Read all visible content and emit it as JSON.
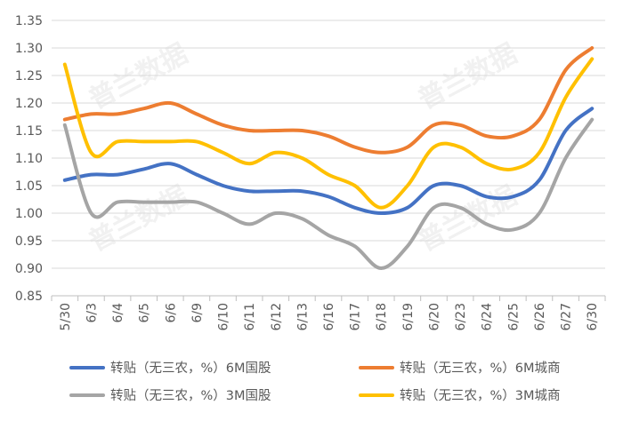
{
  "watermark_text": "普兰数据",
  "chart_data": {
    "type": "line",
    "title": "",
    "xlabel": "",
    "ylabel": "",
    "categories": [
      "5/30",
      "6/3",
      "6/4",
      "6/5",
      "6/6",
      "6/9",
      "6/10",
      "6/11",
      "6/12",
      "6/13",
      "6/16",
      "6/17",
      "6/18",
      "6/19",
      "6/20",
      "6/23",
      "6/24",
      "6/25",
      "6/26",
      "6/27",
      "6/30"
    ],
    "ylim": [
      0.85,
      1.35
    ],
    "yticks": [
      "1.35",
      "1.30",
      "1.25",
      "1.20",
      "1.15",
      "1.10",
      "1.05",
      "1.00",
      "0.95",
      "0.90",
      "0.85"
    ],
    "grid": true,
    "legend_position": "bottom",
    "series": [
      {
        "name": "转贴（无三农，%）6M国股",
        "color": "#4472c4",
        "values": [
          1.06,
          1.07,
          1.07,
          1.08,
          1.09,
          1.07,
          1.05,
          1.04,
          1.04,
          1.04,
          1.03,
          1.01,
          1.0,
          1.01,
          1.05,
          1.05,
          1.03,
          1.03,
          1.06,
          1.15,
          1.19
        ]
      },
      {
        "name": "转贴（无三农，%）6M城商",
        "color": "#ed7d31",
        "values": [
          1.17,
          1.18,
          1.18,
          1.19,
          1.2,
          1.18,
          1.16,
          1.15,
          1.15,
          1.15,
          1.14,
          1.12,
          1.11,
          1.12,
          1.16,
          1.16,
          1.14,
          1.14,
          1.17,
          1.26,
          1.3
        ]
      },
      {
        "name": "转贴（无三农，%）3M国股",
        "color": "#a5a5a5",
        "values": [
          1.16,
          1.0,
          1.02,
          1.02,
          1.02,
          1.02,
          1.0,
          0.98,
          1.0,
          0.99,
          0.96,
          0.94,
          0.9,
          0.94,
          1.01,
          1.01,
          0.98,
          0.97,
          1.0,
          1.1,
          1.17
        ]
      },
      {
        "name": "转贴（无三农，%）3M城商",
        "color": "#ffc000",
        "values": [
          1.27,
          1.11,
          1.13,
          1.13,
          1.13,
          1.13,
          1.11,
          1.09,
          1.11,
          1.1,
          1.07,
          1.05,
          1.01,
          1.05,
          1.12,
          1.12,
          1.09,
          1.08,
          1.11,
          1.21,
          1.28
        ]
      }
    ]
  }
}
